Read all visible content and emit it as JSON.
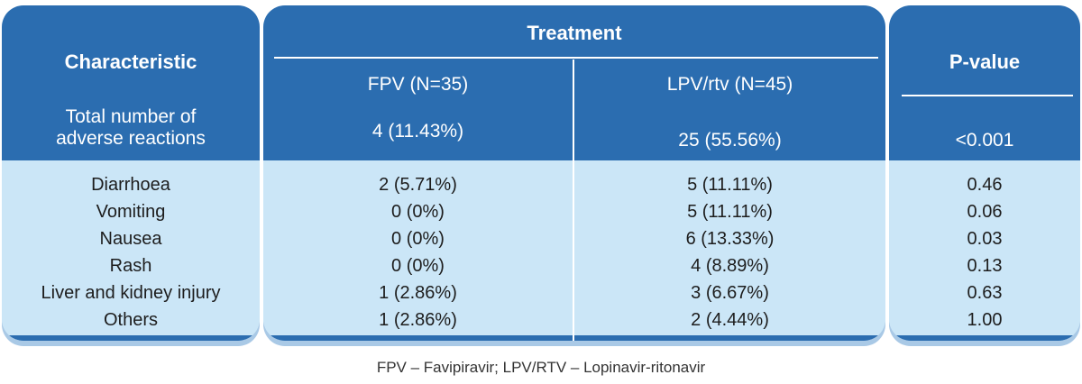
{
  "table": {
    "header": {
      "characteristic": "Characteristic",
      "treatment": "Treatment",
      "fpv": "FPV (N=35)",
      "lpv": "LPV/rtv (N=45)",
      "pvalue": "P-value"
    },
    "total": {
      "label_line1": "Total number of",
      "label_line2": "adverse reactions",
      "fpv": "4 (11.43%)",
      "lpv": "25 (55.56%)",
      "pvalue": "<0.001"
    },
    "rows": [
      {
        "label": "Diarrhoea",
        "fpv": "2 (5.71%)",
        "lpv": "5 (11.11%)",
        "pvalue": "0.46"
      },
      {
        "label": "Vomiting",
        "fpv": "0 (0%)",
        "lpv": "5 (11.11%)",
        "pvalue": "0.06"
      },
      {
        "label": "Nausea",
        "fpv": "0 (0%)",
        "lpv": "6 (13.33%)",
        "pvalue": "0.03"
      },
      {
        "label": "Rash",
        "fpv": "0 (0%)",
        "lpv": "4 (8.89%)",
        "pvalue": "0.13"
      },
      {
        "label": "Liver and kidney injury",
        "fpv": "1 (2.86%)",
        "lpv": "3 (6.67%)",
        "pvalue": "0.63"
      },
      {
        "label": "Others",
        "fpv": "1 (2.86%)",
        "lpv": "2 (4.44%)",
        "pvalue": "1.00"
      }
    ],
    "footnote": "FPV – Favipiravir; LPV/RTV – Lopinavir-ritonavir"
  }
}
